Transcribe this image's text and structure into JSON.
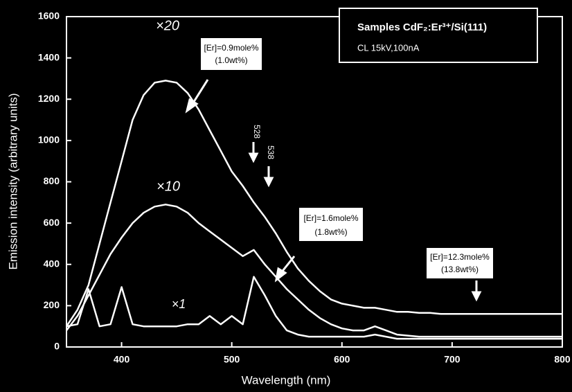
{
  "chart_data": {
    "type": "line",
    "xlabel": "Wavelength (nm)",
    "ylabel": "Emission intensity (arbitrary units)",
    "x": [
      350,
      360,
      370,
      380,
      390,
      400,
      410,
      420,
      430,
      440,
      450,
      460,
      470,
      480,
      490,
      500,
      510,
      520,
      530,
      540,
      550,
      560,
      570,
      580,
      590,
      600,
      610,
      620,
      630,
      640,
      650,
      660,
      670,
      680,
      690,
      700,
      710,
      720,
      730,
      740,
      750,
      760,
      770,
      780,
      790,
      800
    ],
    "series": [
      {
        "color": "#ffffff",
        "values": [
          100,
          180,
          300,
          500,
          700,
          900,
          1100,
          1220,
          1280,
          1290,
          1280,
          1230,
          1150,
          1050,
          950,
          850,
          780,
          700,
          630,
          550,
          460,
          380,
          320,
          270,
          230,
          210,
          200,
          190,
          190,
          180,
          170,
          170,
          165,
          165,
          160,
          160,
          160,
          160,
          160,
          160,
          160,
          160,
          160,
          160,
          160,
          160
        ]
      },
      {
        "color": "#ffffff",
        "values": [
          80,
          150,
          250,
          350,
          450,
          530,
          600,
          650,
          680,
          690,
          680,
          650,
          600,
          560,
          520,
          480,
          440,
          470,
          400,
          340,
          280,
          230,
          180,
          140,
          110,
          90,
          80,
          80,
          100,
          80,
          60,
          55,
          50,
          50,
          50,
          50,
          50,
          50,
          50,
          50,
          50,
          50,
          50,
          50,
          50,
          50
        ]
      },
      {
        "color": "#ffffff",
        "values": [
          100,
          110,
          280,
          100,
          110,
          290,
          110,
          100,
          100,
          100,
          100,
          110,
          110,
          150,
          110,
          150,
          110,
          340,
          250,
          150,
          80,
          60,
          50,
          50,
          50,
          50,
          50,
          50,
          60,
          50,
          40,
          40,
          40,
          40,
          40,
          40,
          40,
          40,
          40,
          40,
          40,
          40,
          40,
          40,
          40,
          40
        ]
      }
    ],
    "xlim": [
      350,
      800
    ],
    "xticks": [
      400,
      500,
      600,
      700,
      800
    ],
    "ylim": [
      0,
      1600
    ],
    "yticks": [
      0,
      200,
      400,
      600,
      800,
      1000,
      1200,
      1400,
      1600
    ],
    "annotations": [
      "×20",
      "×10",
      "×1",
      "528",
      "538",
      "[Er]=0.9mole%",
      "(1.0wt%)",
      "[Er]=1.6mole%",
      "(1.8wt%)",
      "[Er]=12.3mole%",
      "(13.8wt%)",
      "Samples CdF₂:Er³⁺/Si(111)",
      "CL 15kV,100nA"
    ]
  }
}
